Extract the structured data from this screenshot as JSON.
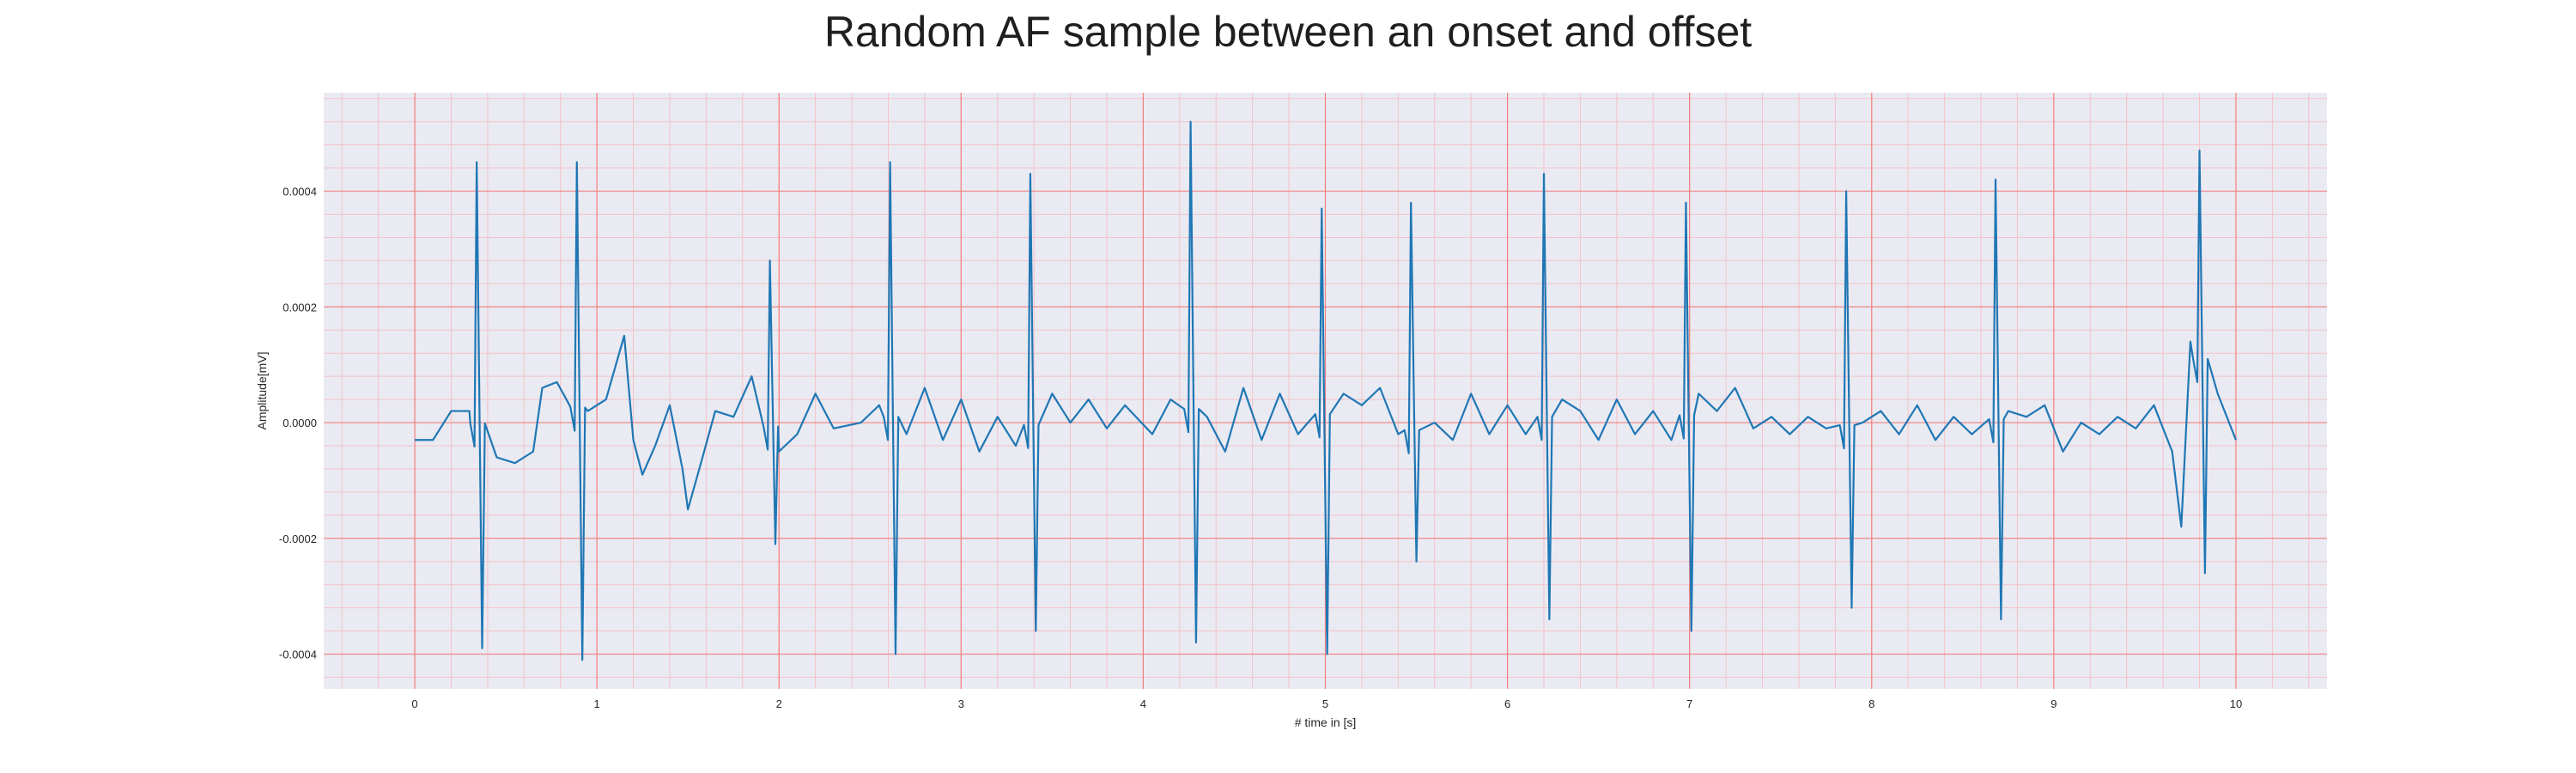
{
  "chart_data": {
    "type": "line",
    "title": "Random AF sample between an onset and offset",
    "xlabel": "# time in [s]",
    "ylabel": "Amplitude[mV]",
    "xlim": [
      -0.5,
      10.5
    ],
    "ylim": [
      -0.00046,
      0.00057
    ],
    "xticks": [
      0,
      1,
      2,
      3,
      4,
      5,
      6,
      7,
      8,
      9,
      10
    ],
    "xtick_labels": [
      "0",
      "1",
      "2",
      "3",
      "4",
      "5",
      "6",
      "7",
      "8",
      "9",
      "10"
    ],
    "yticks": [
      0.0004,
      0.0002,
      0.0,
      -0.0002,
      -0.0004
    ],
    "ytick_labels": [
      "0.0004",
      "0.0002",
      "0.0000",
      "-0.0002",
      "-0.0004"
    ],
    "grid": true,
    "minor_grid": true,
    "colors": {
      "line": "#1f77b4",
      "plot_background": "#eaeaf2",
      "major_grid": "#f08080",
      "minor_grid": "#f4c2c8"
    },
    "series": [
      {
        "beats": [
          {
            "t": 0.34,
            "peak": 0.00045,
            "trough": -0.00039
          },
          {
            "t": 0.89,
            "peak": 0.00045,
            "trough": -0.00041
          },
          {
            "t": 1.95,
            "peak": 0.00028,
            "trough": -0.00021
          },
          {
            "t": 2.61,
            "peak": 0.00045,
            "trough": -0.0004
          },
          {
            "t": 3.38,
            "peak": 0.00043,
            "trough": -0.00036
          },
          {
            "t": 4.26,
            "peak": 0.00052,
            "trough": -0.00038
          },
          {
            "t": 4.98,
            "peak": 0.00037,
            "trough": -0.0004
          },
          {
            "t": 5.47,
            "peak": 0.00038,
            "trough": -0.00024
          },
          {
            "t": 6.2,
            "peak": 0.00043,
            "trough": -0.00034
          },
          {
            "t": 6.98,
            "peak": 0.00038,
            "trough": -0.00036
          },
          {
            "t": 7.86,
            "peak": 0.0004,
            "trough": -0.00032
          },
          {
            "t": 8.68,
            "peak": 0.00042,
            "trough": -0.00034
          },
          {
            "t": 9.8,
            "peak": 0.00047,
            "trough": -0.00026
          }
        ],
        "baseline": [
          [
            0.0,
            -3e-05
          ],
          [
            0.1,
            -3e-05
          ],
          [
            0.2,
            2e-05
          ],
          [
            0.3,
            2e-05
          ],
          [
            0.45,
            -6e-05
          ],
          [
            0.55,
            -7e-05
          ],
          [
            0.65,
            -5e-05
          ],
          [
            0.7,
            6e-05
          ],
          [
            0.78,
            7e-05
          ],
          [
            0.85,
            3e-05
          ],
          [
            0.95,
            2e-05
          ],
          [
            1.05,
            4e-05
          ],
          [
            1.15,
            0.00015
          ],
          [
            1.2,
            -3e-05
          ],
          [
            1.25,
            -9e-05
          ],
          [
            1.32,
            -4e-05
          ],
          [
            1.4,
            3e-05
          ],
          [
            1.47,
            -8e-05
          ],
          [
            1.5,
            -0.00015
          ],
          [
            1.58,
            -6e-05
          ],
          [
            1.65,
            2e-05
          ],
          [
            1.75,
            1e-05
          ],
          [
            1.85,
            8e-05
          ],
          [
            2.0,
            -5e-05
          ],
          [
            2.1,
            -2e-05
          ],
          [
            2.2,
            5e-05
          ],
          [
            2.3,
            -1e-05
          ],
          [
            2.45,
            0.0
          ],
          [
            2.55,
            3e-05
          ],
          [
            2.7,
            -2e-05
          ],
          [
            2.8,
            6e-05
          ],
          [
            2.9,
            -3e-05
          ],
          [
            3.0,
            4e-05
          ],
          [
            3.1,
            -5e-05
          ],
          [
            3.2,
            1e-05
          ],
          [
            3.3,
            -4e-05
          ],
          [
            3.5,
            5e-05
          ],
          [
            3.6,
            0.0
          ],
          [
            3.7,
            4e-05
          ],
          [
            3.8,
            -1e-05
          ],
          [
            3.9,
            3e-05
          ],
          [
            4.05,
            -2e-05
          ],
          [
            4.15,
            4e-05
          ],
          [
            4.35,
            1e-05
          ],
          [
            4.45,
            -5e-05
          ],
          [
            4.55,
            6e-05
          ],
          [
            4.65,
            -3e-05
          ],
          [
            4.75,
            5e-05
          ],
          [
            4.85,
            -2e-05
          ],
          [
            5.0,
            2e-05
          ],
          [
            5.1,
            5e-05
          ],
          [
            5.2,
            3e-05
          ],
          [
            5.3,
            6e-05
          ],
          [
            5.4,
            -2e-05
          ],
          [
            5.6,
            0.0
          ],
          [
            5.7,
            -3e-05
          ],
          [
            5.8,
            5e-05
          ],
          [
            5.9,
            -2e-05
          ],
          [
            6.0,
            3e-05
          ],
          [
            6.1,
            -2e-05
          ],
          [
            6.3,
            4e-05
          ],
          [
            6.4,
            2e-05
          ],
          [
            6.5,
            -3e-05
          ],
          [
            6.6,
            4e-05
          ],
          [
            6.7,
            -2e-05
          ],
          [
            6.8,
            2e-05
          ],
          [
            6.9,
            -3e-05
          ],
          [
            7.05,
            5e-05
          ],
          [
            7.15,
            2e-05
          ],
          [
            7.25,
            6e-05
          ],
          [
            7.35,
            -1e-05
          ],
          [
            7.45,
            1e-05
          ],
          [
            7.55,
            -2e-05
          ],
          [
            7.65,
            1e-05
          ],
          [
            7.75,
            -1e-05
          ],
          [
            7.95,
            0.0
          ],
          [
            8.05,
            2e-05
          ],
          [
            8.15,
            -2e-05
          ],
          [
            8.25,
            3e-05
          ],
          [
            8.35,
            -3e-05
          ],
          [
            8.45,
            1e-05
          ],
          [
            8.55,
            -2e-05
          ],
          [
            8.75,
            2e-05
          ],
          [
            8.85,
            1e-05
          ],
          [
            8.95,
            3e-05
          ],
          [
            9.05,
            -5e-05
          ],
          [
            9.15,
            0.0
          ],
          [
            9.25,
            -2e-05
          ],
          [
            9.35,
            1e-05
          ],
          [
            9.45,
            -1e-05
          ],
          [
            9.55,
            3e-05
          ],
          [
            9.65,
            -5e-05
          ],
          [
            9.7,
            -0.00018
          ],
          [
            9.75,
            0.00014
          ],
          [
            9.9,
            5e-05
          ],
          [
            10.0,
            -3e-05
          ]
        ]
      }
    ]
  }
}
